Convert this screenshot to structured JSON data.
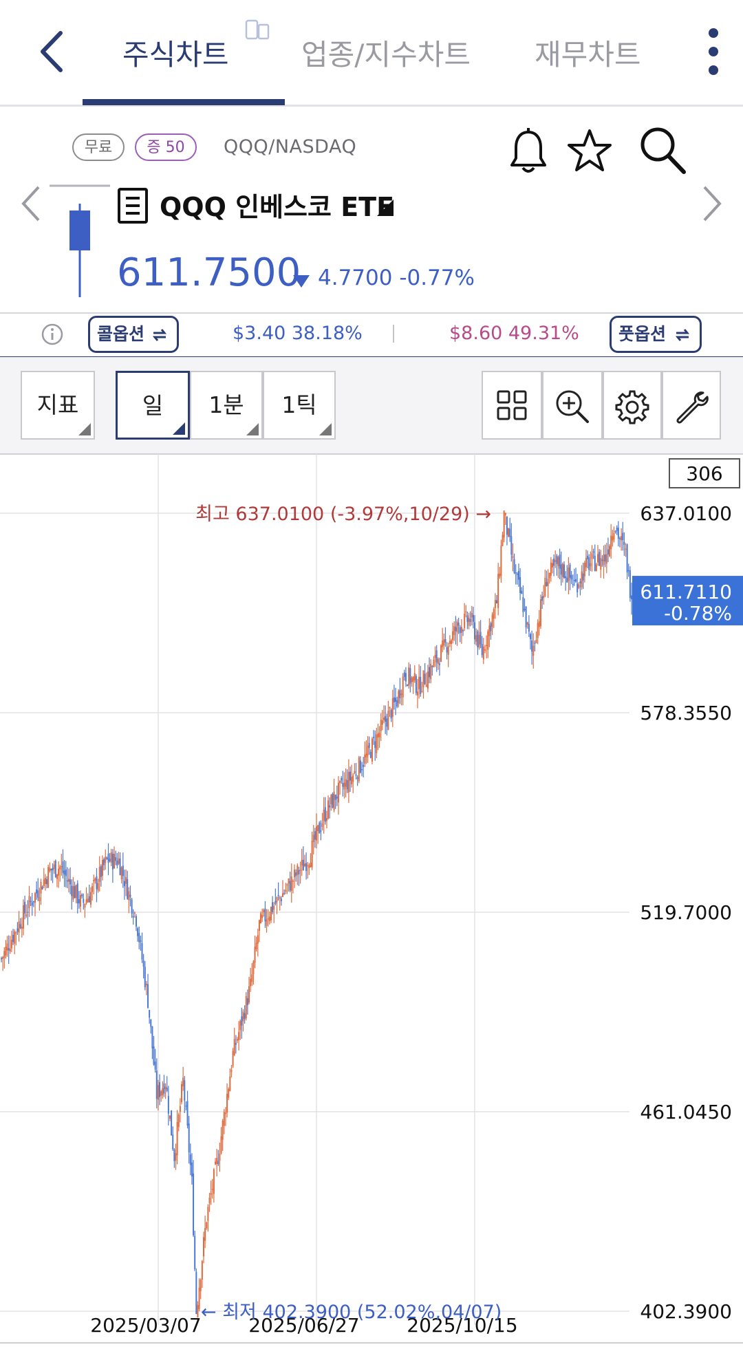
{
  "nav": {
    "tabs": [
      {
        "label": "주식차트",
        "active": true
      },
      {
        "label": "업종/지수차트",
        "active": false
      },
      {
        "label": "재무차트",
        "active": false
      }
    ]
  },
  "stock": {
    "badge_free": "무료",
    "badge_margin": "증 50",
    "symbol_exchange": "QQQ/NASDAQ",
    "name": "QQQ 인베스코 ETF",
    "price": "611.7500",
    "change": "4.7700 -0.77%",
    "change_direction": "down"
  },
  "options": {
    "call_label": "콜옵션",
    "call_value": "$3.40  38.18%",
    "put_label": "풋옵션",
    "put_value": "$8.60  49.31%"
  },
  "toolbar": {
    "indicator": "지표",
    "period_day": "일",
    "period_1min": "1분",
    "period_1tick": "1틱"
  },
  "chart_data": {
    "type": "candlestick",
    "count_box": "306",
    "y_ticks": [
      "637.0100",
      "578.3550",
      "519.7000",
      "461.0450",
      "402.3900"
    ],
    "ylim": [
      402.39,
      637.01
    ],
    "x_ticks": [
      "2025/03/07",
      "2025/06/27",
      "2025/10/15"
    ],
    "current_label": [
      "611.7110",
      "-0.78%"
    ],
    "current_value": 611.711,
    "high_annotation": "최고 637.0100 (-3.97%,10/29) →",
    "low_annotation": "← 최저 402.3900 (52.02%,04/07)",
    "high": 637.01,
    "low": 402.39,
    "path_anchors": [
      [
        0,
        506
      ],
      [
        15,
        519
      ],
      [
        33,
        532
      ],
      [
        40,
        533
      ],
      [
        55,
        522
      ],
      [
        62,
        526
      ],
      [
        72,
        535
      ],
      [
        80,
        535
      ],
      [
        92,
        518
      ],
      [
        100,
        494
      ],
      [
        106,
        466
      ],
      [
        112,
        470
      ],
      [
        118,
        448
      ],
      [
        124,
        470
      ],
      [
        130,
        440
      ],
      [
        133,
        402.39
      ],
      [
        140,
        430
      ],
      [
        148,
        448
      ],
      [
        158,
        478
      ],
      [
        163,
        486
      ],
      [
        170,
        498
      ],
      [
        176,
        516
      ],
      [
        190,
        524
      ],
      [
        200,
        530
      ],
      [
        210,
        536
      ],
      [
        220,
        548
      ],
      [
        228,
        554
      ],
      [
        240,
        560
      ],
      [
        250,
        566
      ],
      [
        262,
        576
      ],
      [
        270,
        582
      ],
      [
        275,
        590
      ],
      [
        285,
        586
      ],
      [
        300,
        596
      ],
      [
        312,
        604
      ],
      [
        320,
        606
      ],
      [
        328,
        596
      ],
      [
        338,
        611
      ],
      [
        343,
        637.01
      ],
      [
        350,
        620
      ],
      [
        356,
        610
      ],
      [
        362,
        596
      ],
      [
        372,
        618
      ],
      [
        380,
        622
      ],
      [
        392,
        616
      ],
      [
        400,
        622
      ],
      [
        412,
        624
      ],
      [
        418,
        634
      ],
      [
        426,
        625
      ],
      [
        430,
        611.71
      ]
    ],
    "colors": {
      "up": "#e06a3c",
      "down": "#4a78d2",
      "high_text": "#b03a3a",
      "low_text": "#3d5fc4",
      "current_bg": "#3a72d8"
    }
  }
}
